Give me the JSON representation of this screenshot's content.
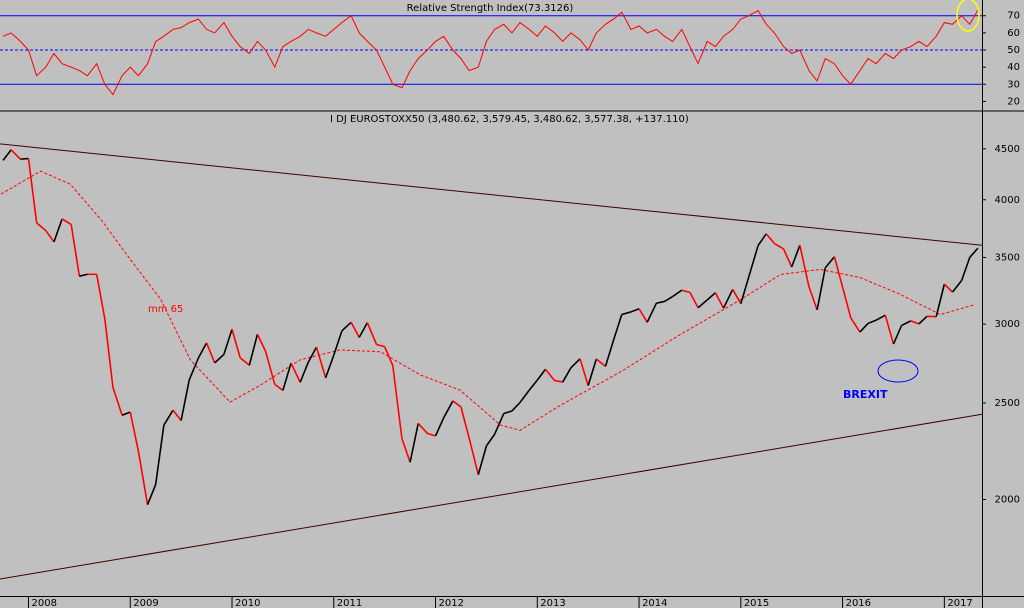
{
  "chart_data": [
    {
      "type": "line",
      "title": "Relative Strength Index(73.3126)",
      "color": "#ff0000",
      "x": [
        2007.75,
        2007.83,
        2007.92,
        2008,
        2008.08,
        2008.17,
        2008.25,
        2008.33,
        2008.42,
        2008.5,
        2008.58,
        2008.67,
        2008.75,
        2008.83,
        2008.92,
        2009,
        2009.08,
        2009.17,
        2009.25,
        2009.33,
        2009.42,
        2009.5,
        2009.58,
        2009.67,
        2009.75,
        2009.83,
        2009.92,
        2010,
        2010.08,
        2010.17,
        2010.25,
        2010.33,
        2010.42,
        2010.5,
        2010.58,
        2010.67,
        2010.75,
        2010.83,
        2010.92,
        2011,
        2011.08,
        2011.17,
        2011.25,
        2011.33,
        2011.42,
        2011.5,
        2011.58,
        2011.67,
        2011.75,
        2011.83,
        2011.92,
        2012,
        2012.08,
        2012.17,
        2012.25,
        2012.33,
        2012.42,
        2012.5,
        2012.58,
        2012.67,
        2012.75,
        2012.83,
        2012.92,
        2013,
        2013.08,
        2013.17,
        2013.25,
        2013.33,
        2013.42,
        2013.5,
        2013.58,
        2013.67,
        2013.75,
        2013.83,
        2013.92,
        2014,
        2014.08,
        2014.17,
        2014.25,
        2014.33,
        2014.42,
        2014.5,
        2014.58,
        2014.67,
        2014.75,
        2014.83,
        2014.92,
        2015,
        2015.08,
        2015.17,
        2015.25,
        2015.33,
        2015.42,
        2015.5,
        2015.58,
        2015.67,
        2015.75,
        2015.83,
        2015.92,
        2016,
        2016.08,
        2016.17,
        2016.25,
        2016.33,
        2016.42,
        2016.5,
        2016.58,
        2016.67,
        2016.75,
        2016.83,
        2016.92,
        2017,
        2017.08,
        2017.17,
        2017.25,
        2017.33
      ],
      "values": [
        58,
        60,
        55,
        50,
        35,
        40,
        48,
        42,
        40,
        38,
        35,
        42,
        30,
        24,
        35,
        40,
        35,
        42,
        55,
        58,
        62,
        63,
        66,
        68,
        62,
        60,
        66,
        58,
        52,
        48,
        55,
        50,
        40,
        52,
        55,
        58,
        62,
        60,
        58,
        62,
        66,
        70,
        60,
        55,
        50,
        40,
        30,
        28,
        38,
        45,
        50,
        55,
        58,
        50,
        45,
        38,
        40,
        55,
        62,
        65,
        60,
        66,
        62,
        58,
        64,
        60,
        55,
        60,
        56,
        50,
        60,
        65,
        68,
        72,
        62,
        64,
        60,
        62,
        58,
        55,
        62,
        52,
        42,
        55,
        52,
        58,
        62,
        68,
        70,
        73,
        65,
        60,
        52,
        48,
        50,
        38,
        32,
        45,
        42,
        35,
        30,
        38,
        45,
        42,
        48,
        45,
        50,
        52,
        55,
        52,
        58,
        66,
        65,
        70,
        65,
        73.3126
      ],
      "levels": [
        {
          "value": 70,
          "dashed": false
        },
        {
          "value": 50,
          "dashed": true
        },
        {
          "value": 30,
          "dashed": false
        }
      ],
      "level_color": "#0000ff",
      "xlim": [
        2007.72,
        2017.37
      ],
      "ylim": [
        15,
        78
      ],
      "yticks": [
        20,
        30,
        40,
        50,
        60,
        70
      ]
    },
    {
      "type": "line",
      "title": "I DJ EUROSTOXX50 (3,480.62, 3,579.45, 3,480.62, 3,577.38, +137.110)",
      "up_color": "#000000",
      "down_color": "#ff0000",
      "x": [
        2007.75,
        2007.83,
        2007.92,
        2008,
        2008.08,
        2008.17,
        2008.25,
        2008.33,
        2008.42,
        2008.5,
        2008.58,
        2008.67,
        2008.75,
        2008.83,
        2008.92,
        2009,
        2009.08,
        2009.17,
        2009.25,
        2009.33,
        2009.42,
        2009.5,
        2009.58,
        2009.67,
        2009.75,
        2009.83,
        2009.92,
        2010,
        2010.08,
        2010.17,
        2010.25,
        2010.33,
        2010.42,
        2010.5,
        2010.58,
        2010.67,
        2010.75,
        2010.83,
        2010.92,
        2011,
        2011.08,
        2011.17,
        2011.25,
        2011.33,
        2011.42,
        2011.5,
        2011.58,
        2011.67,
        2011.75,
        2011.83,
        2011.92,
        2012,
        2012.08,
        2012.17,
        2012.25,
        2012.33,
        2012.42,
        2012.5,
        2012.58,
        2012.67,
        2012.75,
        2012.83,
        2012.92,
        2013,
        2013.08,
        2013.17,
        2013.25,
        2013.33,
        2013.42,
        2013.5,
        2013.58,
        2013.67,
        2013.75,
        2013.83,
        2013.92,
        2014,
        2014.08,
        2014.17,
        2014.25,
        2014.33,
        2014.42,
        2014.5,
        2014.58,
        2014.67,
        2014.75,
        2014.83,
        2014.92,
        2015,
        2015.08,
        2015.17,
        2015.25,
        2015.33,
        2015.42,
        2015.5,
        2015.58,
        2015.67,
        2015.75,
        2015.83,
        2015.92,
        2016,
        2016.08,
        2016.17,
        2016.25,
        2016.33,
        2016.42,
        2016.5,
        2016.58,
        2016.67,
        2016.75,
        2016.83,
        2016.92,
        2017,
        2017.08,
        2017.17,
        2017.25,
        2017.33
      ],
      "values": [
        4381,
        4490,
        4394,
        4400,
        3792,
        3725,
        3628,
        3826,
        3777,
        3352,
        3367,
        3366,
        3038,
        2591,
        2430,
        2448,
        2236,
        1976,
        2071,
        2375,
        2459,
        2401,
        2638,
        2775,
        2873,
        2743,
        2797,
        2965,
        2776,
        2728,
        2931,
        2817,
        2610,
        2574,
        2742,
        2623,
        2748,
        2845,
        2650,
        2793,
        2954,
        3013,
        2910,
        3011,
        2862,
        2848,
        2726,
        2302,
        2180,
        2385,
        2330,
        2317,
        2416,
        2512,
        2477,
        2306,
        2118,
        2264,
        2325,
        2440,
        2454,
        2503,
        2575,
        2636,
        2703,
        2633,
        2624,
        2712,
        2769,
        2603,
        2768,
        2721,
        2893,
        3068,
        3086,
        3109,
        3013,
        3149,
        3162,
        3198,
        3245,
        3229,
        3116,
        3173,
        3226,
        3113,
        3251,
        3146,
        3351,
        3599,
        3697,
        3615,
        3570,
        3424,
        3601,
        3270,
        3101,
        3418,
        3506,
        3268,
        3045,
        2946,
        3005,
        3028,
        3063,
        2865,
        2991,
        3023,
        3002,
        3055,
        3052,
        3291,
        3231,
        3319,
        3501,
        3577
      ],
      "moving_average": {
        "name": "mm 65",
        "color": "#ff0000",
        "x": [
          2007.73,
          2008.12,
          2008.41,
          2008.71,
          2009.0,
          2009.3,
          2009.59,
          2009.98,
          2010.28,
          2010.67,
          2011.06,
          2011.46,
          2011.85,
          2012.24,
          2012.64,
          2012.83,
          2013.23,
          2013.82,
          2014.4,
          2015.0,
          2015.39,
          2015.78,
          2016.17,
          2016.57,
          2016.96,
          2017.3
        ],
        "values": [
          4053,
          4274,
          4147,
          3824,
          3485,
          3176,
          2763,
          2505,
          2606,
          2763,
          2827,
          2814,
          2668,
          2576,
          2375,
          2347,
          2488,
          2687,
          2927,
          3176,
          3365,
          3405,
          3342,
          3213,
          3067,
          3139
        ]
      },
      "trendlines": [
        {
          "x": [
            2007.72,
            2017.37
          ],
          "values": [
            4552,
            3600
          ]
        },
        {
          "x": [
            2007.72,
            2017.37
          ],
          "values": [
            1664,
            2436
          ]
        }
      ],
      "trendline_color": "#400000",
      "annotation": "BREXIT",
      "log_scale": true,
      "xlim": [
        2007.72,
        2017.37
      ],
      "xticks": [
        2008,
        2009,
        2010,
        2011,
        2012,
        2013,
        2014,
        2015,
        2016,
        2017
      ],
      "ylim": [
        1600,
        4900
      ],
      "yticks": [
        2000,
        2500,
        3000,
        3500,
        4000,
        4500
      ]
    }
  ]
}
